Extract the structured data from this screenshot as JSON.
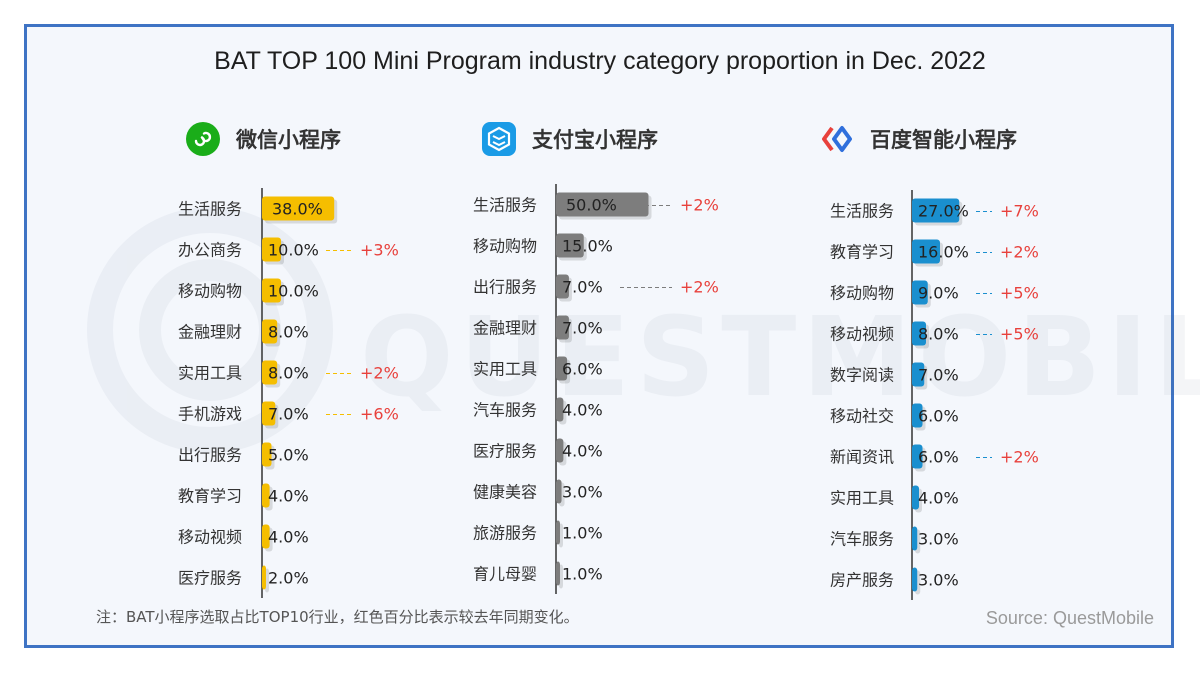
{
  "title": "BAT TOP 100 Mini Program industry category proportion in Dec. 2022",
  "watermark": "QUESTMOBILE",
  "note": "注：BAT小程序选取占比TOP10行业，红色百分比表示较去年同期变化。",
  "source": "Source: QuestMobile",
  "colors": {
    "frame": "#3e73c4",
    "wechat": "#f5be00",
    "alipay": "#7d7d7d",
    "baidu": "#1a8fcf",
    "change": "#e8413c"
  },
  "panels": [
    {
      "name": "微信小程序",
      "icon": "wechat-mini-program-icon"
    },
    {
      "name": "支付宝小程序",
      "icon": "alipay-mini-program-icon"
    },
    {
      "name": "百度智能小程序",
      "icon": "baidu-mini-program-icon"
    }
  ],
  "chart_data": [
    {
      "type": "bar",
      "orientation": "horizontal",
      "title": "微信小程序",
      "categories": [
        "生活服务",
        "办公商务",
        "移动购物",
        "金融理财",
        "实用工具",
        "手机游戏",
        "出行服务",
        "教育学习",
        "移动视频",
        "医疗服务"
      ],
      "values": [
        38.0,
        10.0,
        10.0,
        8.0,
        8.0,
        7.0,
        5.0,
        4.0,
        4.0,
        2.0
      ],
      "labels": [
        "38.0%",
        "10.0%",
        "10.0%",
        "8.0%",
        "8.0%",
        "7.0%",
        "5.0%",
        "4.0%",
        "4.0%",
        "2.0%"
      ],
      "changes": [
        "",
        "+3%",
        "",
        "",
        "+2%",
        "+6%",
        "",
        "",
        "",
        ""
      ]
    },
    {
      "type": "bar",
      "orientation": "horizontal",
      "title": "支付宝小程序",
      "categories": [
        "生活服务",
        "移动购物",
        "出行服务",
        "金融理财",
        "实用工具",
        "汽车服务",
        "医疗服务",
        "健康美容",
        "旅游服务",
        "育儿母婴"
      ],
      "values": [
        50.0,
        15.0,
        7.0,
        7.0,
        6.0,
        4.0,
        4.0,
        3.0,
        1.0,
        1.0
      ],
      "labels": [
        "50.0%",
        "15.0%",
        "7.0%",
        "7.0%",
        "6.0%",
        "4.0%",
        "4.0%",
        "3.0%",
        "1.0%",
        "1.0%"
      ],
      "changes": [
        "+2%",
        "",
        "+2%",
        "",
        "",
        "",
        "",
        "",
        "",
        ""
      ]
    },
    {
      "type": "bar",
      "orientation": "horizontal",
      "title": "百度智能小程序",
      "categories": [
        "生活服务",
        "教育学习",
        "移动购物",
        "移动视频",
        "数字阅读",
        "移动社交",
        "新闻资讯",
        "实用工具",
        "汽车服务",
        "房产服务"
      ],
      "values": [
        27.0,
        16.0,
        9.0,
        8.0,
        7.0,
        6.0,
        6.0,
        4.0,
        3.0,
        3.0
      ],
      "labels": [
        "27.0%",
        "16.0%",
        "9.0%",
        "8.0%",
        "7.0%",
        "6.0%",
        "6.0%",
        "4.0%",
        "3.0%",
        "3.0%"
      ],
      "changes": [
        "+7%",
        "+2%",
        "+5%",
        "+5%",
        "",
        "",
        "+2%",
        "",
        "",
        ""
      ]
    }
  ]
}
